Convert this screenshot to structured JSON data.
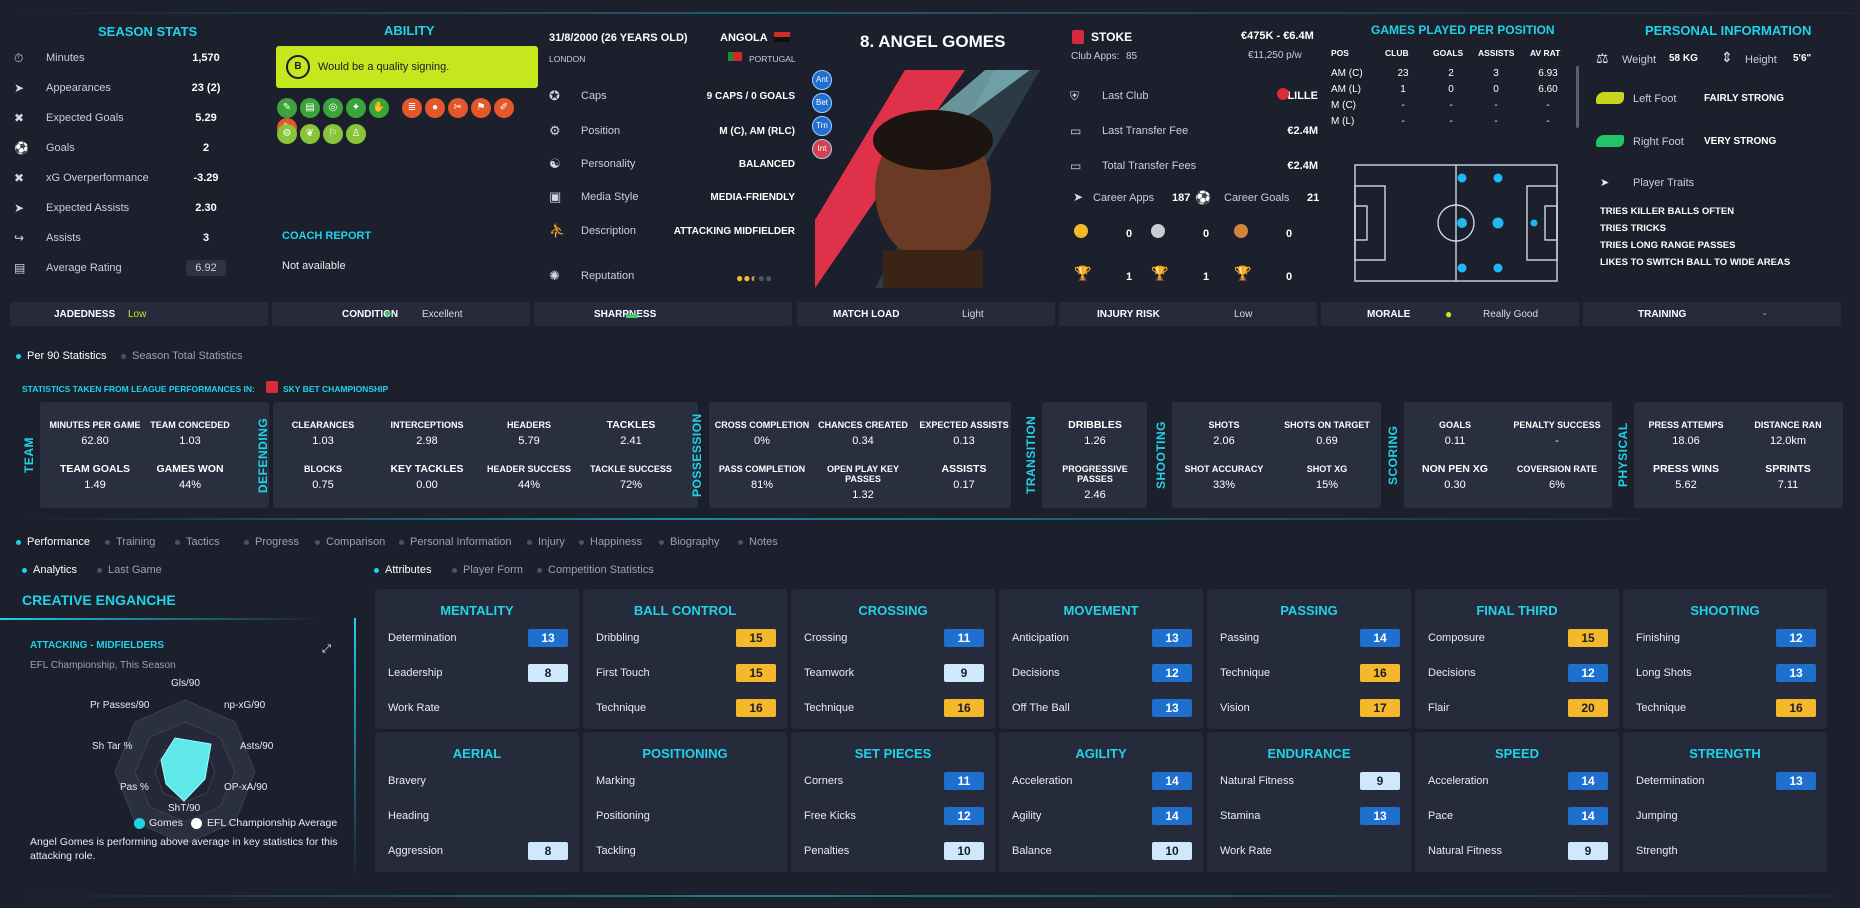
{
  "season_stats": {
    "title": "SEASON STATS",
    "rows": [
      {
        "icon": "stopwatch-icon",
        "label": "Minutes",
        "value": "1,570"
      },
      {
        "icon": "boot-icon",
        "label": "Appearances",
        "value": "23 (2)"
      },
      {
        "icon": "xg-icon",
        "label": "Expected Goals",
        "value": "5.29"
      },
      {
        "icon": "ball-icon",
        "label": "Goals",
        "value": "2"
      },
      {
        "icon": "xg-icon",
        "label": "xG Overperformance",
        "value": "-3.29"
      },
      {
        "icon": "boot-icon",
        "label": "Expected Assists",
        "value": "2.30"
      },
      {
        "icon": "assist-icon",
        "label": "Assists",
        "value": "3"
      },
      {
        "icon": "clipboard-icon",
        "label": "Average Rating",
        "value": "6.92"
      }
    ]
  },
  "ability": {
    "title": "ABILITY",
    "grade": "B",
    "text": "Would be a quality signing.",
    "coach_report_title": "COACH REPORT",
    "coach_report": "Not available"
  },
  "player": {
    "dob": "31/8/2000 (26 YEARS OLD)",
    "city": "LONDON",
    "nation1": "ANGOLA",
    "nation2": "PORTUGAL",
    "name": "8. ANGEL GOMES",
    "info": [
      {
        "icon": "caps-icon",
        "label": "Caps",
        "value": "9 CAPS / 0 GOALS"
      },
      {
        "icon": "position-icon",
        "label": "Position",
        "value": "M (C), AM (RLC)"
      },
      {
        "icon": "personality-icon",
        "label": "Personality",
        "value": "BALANCED"
      },
      {
        "icon": "media-icon",
        "label": "Media Style",
        "value": "MEDIA-FRIENDLY"
      },
      {
        "icon": "description-icon",
        "label": "Description",
        "value": "ATTACKING MIDFIELDER"
      },
      {
        "icon": "reputation-icon",
        "label": "Reputation",
        "value": ""
      }
    ],
    "reputation_stars": 2.5,
    "tags": [
      "Ant",
      "Bet",
      "Trn",
      "Int"
    ]
  },
  "club": {
    "name": "STOKE",
    "value": "€475K - €6.4M",
    "apps_label": "Club Apps:",
    "apps": "85",
    "wage": "€11,250 p/w",
    "rows": [
      {
        "label": "Last Club",
        "value": "LILLE"
      },
      {
        "label": "Last Transfer Fee",
        "value": "€2.4M"
      },
      {
        "label": "Total Transfer Fees",
        "value": "€2.4M"
      }
    ],
    "career_apps_label": "Career Apps",
    "career_apps": "187",
    "career_goals_label": "Career Goals",
    "career_goals": "21",
    "medals": [
      "0",
      "0",
      "0"
    ],
    "trophies": [
      "1",
      "1",
      "0"
    ]
  },
  "games_per_position": {
    "title": "GAMES PLAYED PER POSITION",
    "headers": [
      "POS",
      "CLUB",
      "GOALS",
      "ASSISTS",
      "AV RAT"
    ],
    "rows": [
      [
        "AM (C)",
        "23",
        "2",
        "3",
        "6.93"
      ],
      [
        "AM (L)",
        "1",
        "0",
        "0",
        "6.60"
      ],
      [
        "M (C)",
        "-",
        "-",
        "-",
        "-"
      ],
      [
        "M (L)",
        "-",
        "-",
        "-",
        "-"
      ]
    ]
  },
  "personal": {
    "title": "PERSONAL INFORMATION",
    "weight_label": "Weight",
    "weight": "58 KG",
    "height_label": "Height",
    "height": "5'6\"",
    "left_foot_label": "Left Foot",
    "left_foot": "FAIRLY STRONG",
    "right_foot_label": "Right Foot",
    "right_foot": "VERY STRONG",
    "traits_label": "Player Traits",
    "traits": [
      "TRIES KILLER BALLS OFTEN",
      "TRIES TRICKS",
      "TRIES LONG RANGE PASSES",
      "LIKES TO SWITCH BALL TO WIDE AREAS"
    ]
  },
  "status_bar": [
    {
      "key": "JADEDNESS",
      "value": "Low"
    },
    {
      "key": "CONDITION",
      "value": "Excellent"
    },
    {
      "key": "SHARPNESS",
      "value": ""
    },
    {
      "key": "MATCH LOAD",
      "value": "Light"
    },
    {
      "key": "INJURY RISK",
      "value": "Low"
    },
    {
      "key": "MORALE",
      "value": "Really Good"
    },
    {
      "key": "TRAINING",
      "value": "-"
    }
  ],
  "stats_tabs": [
    "Per 90 Statistics",
    "Season Total Statistics"
  ],
  "league_note": "STATISTICS TAKEN FROM LEAGUE PERFORMANCES IN:",
  "league": "SKY BET CHAMPIONSHIP",
  "stat_groups": {
    "team": {
      "title": "TEAM",
      "items": [
        [
          "MINUTES PER GAME",
          "62.80"
        ],
        [
          "TEAM CONCEDED",
          "1.03"
        ],
        [
          "TEAM GOALS",
          "1.49"
        ],
        [
          "GAMES WON",
          "44%"
        ]
      ]
    },
    "defending": {
      "title": "DEFENDING",
      "items": [
        [
          "CLEARANCES",
          "1.03"
        ],
        [
          "INTERCEPTIONS",
          "2.98"
        ],
        [
          "HEADERS",
          "5.79"
        ],
        [
          "TACKLES",
          "2.41"
        ],
        [
          "BLOCKS",
          "0.75"
        ],
        [
          "KEY TACKLES",
          "0.00"
        ],
        [
          "HEADER SUCCESS",
          "44%"
        ],
        [
          "TACKLE SUCCESS",
          "72%"
        ]
      ]
    },
    "possession": {
      "title": "POSSESSION",
      "items": [
        [
          "CROSS COMPLETION",
          "0%"
        ],
        [
          "CHANCES CREATED",
          "0.34"
        ],
        [
          "EXPECTED ASSISTS",
          "0.13"
        ],
        [
          "PASS COMPLETION",
          "81%"
        ],
        [
          "OPEN PLAY KEY PASSES",
          "1.32"
        ],
        [
          "ASSISTS",
          "0.17"
        ]
      ]
    },
    "transition": {
      "title": "TRANSITION",
      "items": [
        [
          "DRIBBLES",
          "1.26"
        ],
        [
          "PROGRESSIVE PASSES",
          "2.46"
        ]
      ]
    },
    "shooting": {
      "title": "SHOOTING",
      "items": [
        [
          "SHOTS",
          "2.06"
        ],
        [
          "SHOTS ON TARGET",
          "0.69"
        ],
        [
          "SHOT ACCURACY",
          "33%"
        ],
        [
          "SHOT XG",
          "15%"
        ]
      ]
    },
    "scoring": {
      "title": "SCORING",
      "items": [
        [
          "GOALS",
          "0.11"
        ],
        [
          "PENALTY SUCCESS",
          "-"
        ],
        [
          "NON PEN XG",
          "0.30"
        ],
        [
          "COVERSION RATE",
          "6%"
        ]
      ]
    },
    "physical": {
      "title": "PHYSICAL",
      "items": [
        [
          "PRESS ATTEMPS",
          "18.06"
        ],
        [
          "DISTANCE RAN",
          "12.0km"
        ],
        [
          "PRESS WINS",
          "5.62"
        ],
        [
          "SPRINTS",
          "7.11"
        ]
      ]
    }
  },
  "main_tabs": [
    "Performance",
    "Training",
    "Tactics",
    "Progress",
    "Comparison",
    "Personal Information",
    "Injury",
    "Happiness",
    "Biography",
    "Notes"
  ],
  "analytics_tabs": [
    "Analytics",
    "Last Game"
  ],
  "role": {
    "title": "CREATIVE ENGANCHE",
    "group": "ATTACKING - MIDFIELDERS",
    "context": "EFL Championship, This Season",
    "radar_labels": [
      "Gls/90",
      "np-xG/90",
      "Asts/90",
      "OP-xA/90",
      "ShT/90",
      "Pas %",
      "Sh Tar %",
      "Pr Passes/90"
    ],
    "legend_player": "Gomes",
    "legend_avg": "EFL Championship Average",
    "summary": "Angel Gomes is performing above average in key statistics for this attacking role."
  },
  "attr_tabs": [
    "Attributes",
    "Player Form",
    "Competition Statistics"
  ],
  "attribute_cards": [
    {
      "title": "MENTALITY",
      "rows": [
        [
          "Determination",
          "13",
          "blue"
        ],
        [
          "Leadership",
          "8",
          "light"
        ],
        [
          "Work Rate",
          "",
          ""
        ]
      ]
    },
    {
      "title": "BALL CONTROL",
      "rows": [
        [
          "Dribbling",
          "15",
          "gold"
        ],
        [
          "First Touch",
          "15",
          "gold"
        ],
        [
          "Technique",
          "16",
          "gold"
        ]
      ]
    },
    {
      "title": "CROSSING",
      "rows": [
        [
          "Crossing",
          "11",
          "blue"
        ],
        [
          "Teamwork",
          "9",
          "light"
        ],
        [
          "Technique",
          "16",
          "gold"
        ]
      ]
    },
    {
      "title": "MOVEMENT",
      "rows": [
        [
          "Anticipation",
          "13",
          "blue"
        ],
        [
          "Decisions",
          "12",
          "blue"
        ],
        [
          "Off The Ball",
          "13",
          "blue"
        ]
      ]
    },
    {
      "title": "PASSING",
      "rows": [
        [
          "Passing",
          "14",
          "blue"
        ],
        [
          "Technique",
          "16",
          "gold"
        ],
        [
          "Vision",
          "17",
          "gold"
        ]
      ]
    },
    {
      "title": "FINAL THIRD",
      "rows": [
        [
          "Composure",
          "15",
          "gold"
        ],
        [
          "Decisions",
          "12",
          "blue"
        ],
        [
          "Flair",
          "20",
          "gold"
        ]
      ]
    },
    {
      "title": "SHOOTING",
      "rows": [
        [
          "Finishing",
          "12",
          "blue"
        ],
        [
          "Long Shots",
          "13",
          "blue"
        ],
        [
          "Technique",
          "16",
          "gold"
        ]
      ]
    },
    {
      "title": "AERIAL",
      "rows": [
        [
          "Bravery",
          "",
          ""
        ],
        [
          "Heading",
          "",
          ""
        ],
        [
          "Aggression",
          "8",
          "light"
        ]
      ]
    },
    {
      "title": "POSITIONING",
      "rows": [
        [
          "Marking",
          "",
          ""
        ],
        [
          "Positioning",
          "",
          ""
        ],
        [
          "Tackling",
          "",
          ""
        ]
      ]
    },
    {
      "title": "SET PIECES",
      "rows": [
        [
          "Corners",
          "11",
          "blue"
        ],
        [
          "Free Kicks",
          "12",
          "blue"
        ],
        [
          "Penalties",
          "10",
          "light"
        ]
      ]
    },
    {
      "title": "AGILITY",
      "rows": [
        [
          "Acceleration",
          "14",
          "blue"
        ],
        [
          "Agility",
          "14",
          "blue"
        ],
        [
          "Balance",
          "10",
          "light"
        ]
      ]
    },
    {
      "title": "ENDURANCE",
      "rows": [
        [
          "Natural Fitness",
          "9",
          "light"
        ],
        [
          "Stamina",
          "13",
          "blue"
        ],
        [
          "Work Rate",
          "",
          ""
        ]
      ]
    },
    {
      "title": "SPEED",
      "rows": [
        [
          "Acceleration",
          "14",
          "blue"
        ],
        [
          "Pace",
          "14",
          "blue"
        ],
        [
          "Natural Fitness",
          "9",
          "light"
        ]
      ]
    },
    {
      "title": "STRENGTH",
      "rows": [
        [
          "Determination",
          "13",
          "blue"
        ],
        [
          "Jumping",
          "",
          ""
        ],
        [
          "Strength",
          "",
          ""
        ]
      ]
    }
  ],
  "colors": {
    "accent": "#1fd3e8",
    "gold": "#f4b82a",
    "blue": "#1f6fcf",
    "lime": "#c6e61e"
  }
}
